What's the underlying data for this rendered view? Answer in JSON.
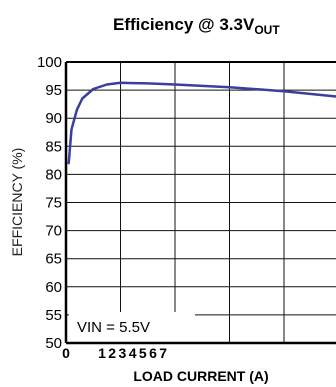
{
  "chart_data": {
    "type": "line",
    "title_main": "Efficiency @ 3.3V",
    "title_sub": "OUT",
    "xlabel": "LOAD CURRENT (A)",
    "ylabel": "EFFICIENCY (%)",
    "ylim": [
      50,
      100
    ],
    "xlim": [
      0,
      7
    ],
    "yticks": [
      50,
      55,
      60,
      65,
      70,
      75,
      80,
      85,
      90,
      95,
      100
    ],
    "xticks": [
      "0",
      "1",
      "2",
      "3",
      "4",
      "5",
      "6",
      "7"
    ],
    "grid": true,
    "annotation": "VIN = 5.5V",
    "line_color": "#3a3f9e",
    "series": [
      {
        "x": [
          0.05,
          0.1,
          0.2,
          0.3,
          0.5,
          0.75,
          1.0,
          1.5,
          2.0,
          3.0,
          4.0,
          5.0,
          6.0,
          7.0
        ],
        "y": [
          82,
          88,
          91.5,
          93.5,
          95.2,
          96.0,
          96.3,
          96.2,
          96.0,
          95.5,
          94.8,
          93.8,
          92.7,
          91.5
        ]
      }
    ]
  }
}
